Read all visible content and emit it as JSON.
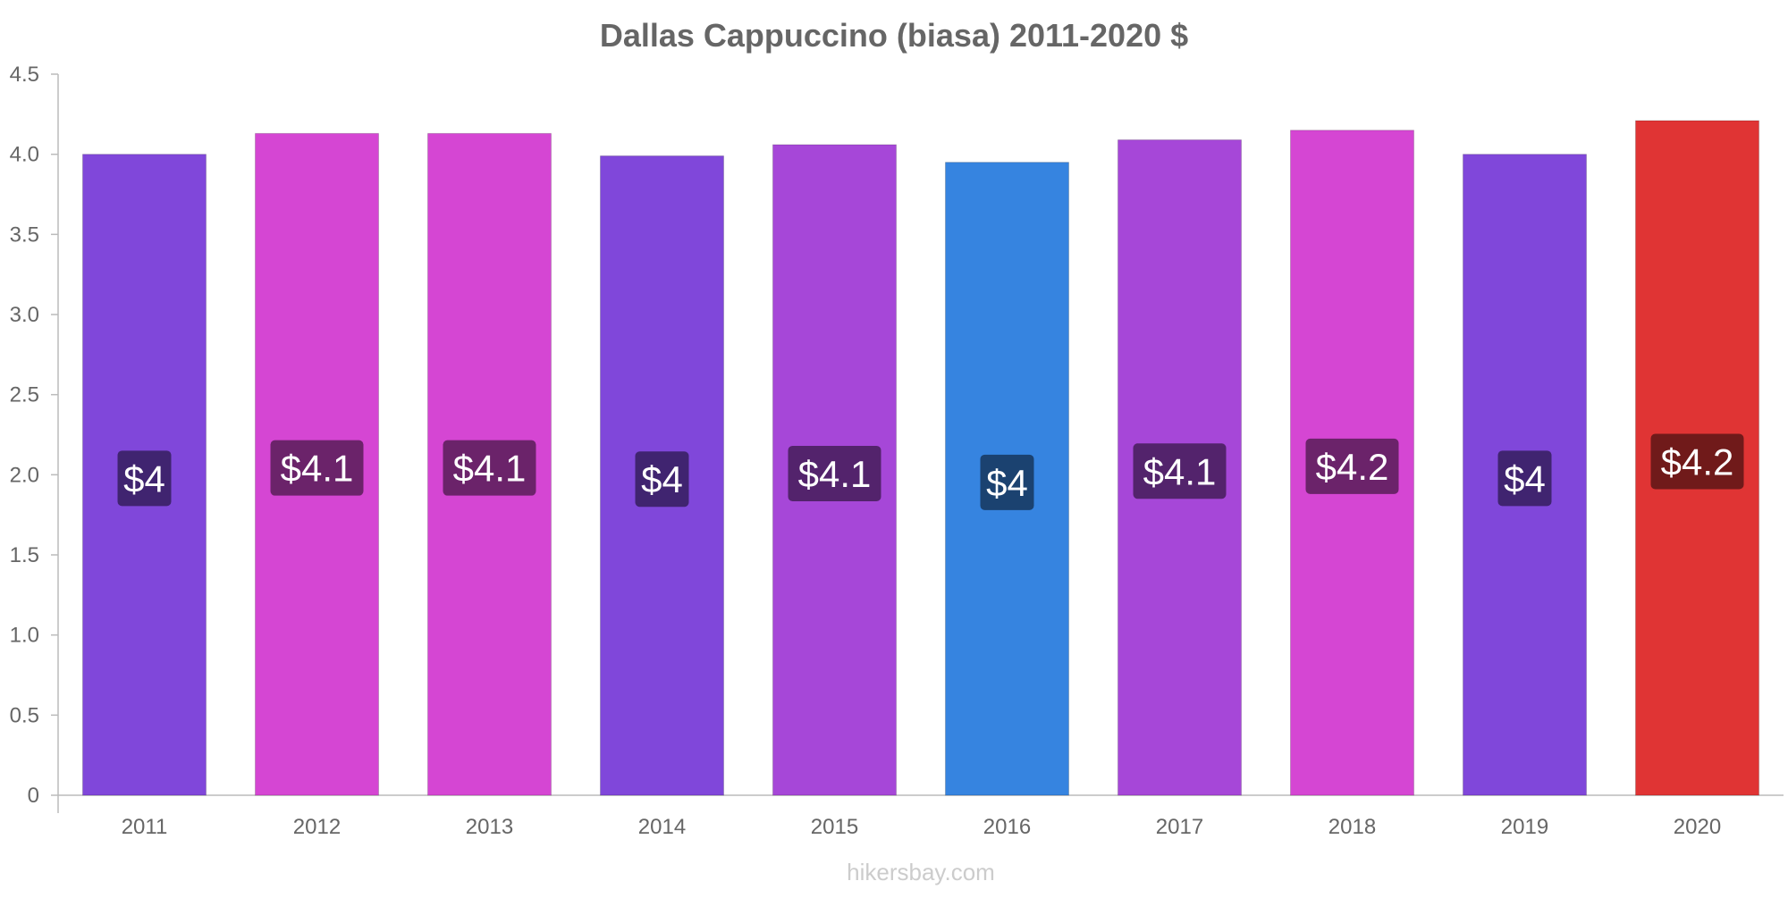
{
  "chart_data": {
    "type": "bar",
    "title": "Dallas Cappuccino (biasa) 2011-2020 $",
    "xlabel": "",
    "ylabel": "",
    "categories": [
      "2011",
      "2012",
      "2013",
      "2014",
      "2015",
      "2016",
      "2017",
      "2018",
      "2019",
      "2020"
    ],
    "values": [
      4.0,
      4.13,
      4.13,
      3.99,
      4.06,
      3.95,
      4.09,
      4.15,
      4.0,
      4.21
    ],
    "data_labels": [
      "$4",
      "$4.1",
      "$4.1",
      "$4",
      "$4.1",
      "$4",
      "$4.1",
      "$4.2",
      "$4",
      "$4.2"
    ],
    "bar_colors": [
      "#8047da",
      "#d546d3",
      "#d546d3",
      "#8047da",
      "#a647d8",
      "#3684e0",
      "#a647d8",
      "#d546d3",
      "#8047da",
      "#e03434"
    ],
    "label_bg_colors": [
      "#402470",
      "#6b236a",
      "#6b236a",
      "#402470",
      "#53236c",
      "#1b4270",
      "#53236c",
      "#6b236a",
      "#402470",
      "#701a1a"
    ],
    "y_ticks": [
      "0",
      "0.5",
      "1.0",
      "1.5",
      "2.0",
      "2.5",
      "3.0",
      "3.5",
      "4.0",
      "4.5"
    ],
    "ylim": [
      0,
      4.5
    ],
    "grid": false,
    "legend": "none"
  },
  "watermark": "hikersbay.com"
}
